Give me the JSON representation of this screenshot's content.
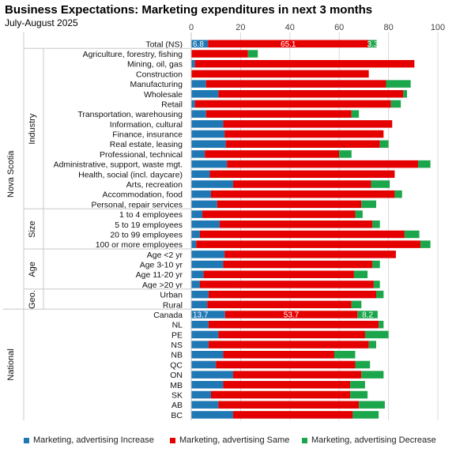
{
  "chart_data": {
    "type": "bar",
    "orientation": "horizontal",
    "stacked": true,
    "title": "Business Expectations:  Marketing expenditures  in next 3 months",
    "subtitle": "July-August 2025",
    "xlim": [
      0,
      100
    ],
    "xticks": [
      "0",
      "20",
      "40",
      "60",
      "80",
      "100"
    ],
    "grid": true,
    "legend_position": "bottom",
    "colors": {
      "increase": "#1f77b4",
      "same": "#e50000",
      "decrease": "#1ca64c"
    },
    "series": [
      {
        "name": "Marketing, advertising Increase",
        "key": "increase"
      },
      {
        "name": "Marketing, advertising Same",
        "key": "same"
      },
      {
        "name": "Marketing, advertising Decrease",
        "key": "decrease"
      }
    ],
    "groups": [
      {
        "label": "Nova Scotia",
        "start": 0,
        "end": 26
      },
      {
        "label": "National",
        "start": 27,
        "end": 37
      }
    ],
    "subgroups": [
      {
        "label": "Industry",
        "start": 1,
        "end": 16
      },
      {
        "label": "Size",
        "start": 17,
        "end": 20
      },
      {
        "label": "Age",
        "start": 21,
        "end": 24
      },
      {
        "label": "Geo.",
        "start": 25,
        "end": 26
      }
    ],
    "categories": [
      "Total (NS)",
      "Agriculture, forestry, fishing",
      "Mining, oil, gas",
      "Construction",
      "Manufacturing",
      "Wholesale",
      "Retail",
      "Transportation, warehousing",
      "Information, cultural",
      "Finance, insurance",
      "Real estate, leasing",
      "Professional, technical",
      "Administrative, support, waste mgt.",
      "Health, social (incl. daycare)",
      "Arts, recreation",
      "Accommodation, food",
      "Personal, repair services",
      "1 to 4 employees",
      "5 to 19 employees",
      "20 to 99 employees",
      "100 or more employees",
      "Age <2 yr",
      "Age 3-10 yr",
      "Age 11-20 yr",
      "Age >20 yr",
      "Urban",
      "Rural",
      "Canada",
      "NL",
      "PE",
      "NS",
      "NB",
      "QC",
      "ON",
      "MB",
      "SK",
      "AB",
      "BC"
    ],
    "increase": [
      6.8,
      0,
      1.5,
      0,
      6,
      11,
      1.5,
      6,
      13,
      13.5,
      14,
      5.5,
      14.5,
      7.5,
      17,
      8,
      10.5,
      4.5,
      11.5,
      3.5,
      2,
      13.5,
      13,
      5,
      3.5,
      7,
      6.5,
      13.7,
      7,
      11,
      7,
      13,
      10,
      17,
      13,
      8,
      11,
      17
    ],
    "same": [
      65.1,
      23,
      89,
      72,
      73,
      75,
      79.5,
      59,
      68.5,
      64.5,
      62.5,
      54.5,
      77.5,
      75,
      56,
      74.5,
      58.5,
      62,
      62,
      83,
      91,
      69.5,
      60.5,
      61,
      70.5,
      68,
      58.5,
      53.7,
      69,
      59.5,
      65,
      45,
      56.5,
      52,
      51.5,
      56.5,
      57,
      48.5
    ],
    "decrease": [
      3.3,
      4,
      0,
      0,
      10,
      1.5,
      4,
      3,
      0,
      0,
      3.5,
      5,
      5,
      0,
      7.5,
      3,
      6,
      3,
      3,
      6,
      4,
      0,
      3,
      5.5,
      2.5,
      3,
      4,
      8.2,
      2,
      9.5,
      3,
      8.5,
      6,
      9,
      6,
      7,
      10.5,
      10.5
    ],
    "data_labels": [
      {
        "row": 0,
        "series": "increase",
        "text": "6.8"
      },
      {
        "row": 0,
        "series": "same",
        "text": "65.1"
      },
      {
        "row": 0,
        "series": "decrease",
        "text": "3.3"
      },
      {
        "row": 27,
        "series": "increase",
        "text": "13.7"
      },
      {
        "row": 27,
        "series": "same",
        "text": "53.7"
      },
      {
        "row": 27,
        "series": "decrease",
        "text": "8.2"
      }
    ]
  }
}
